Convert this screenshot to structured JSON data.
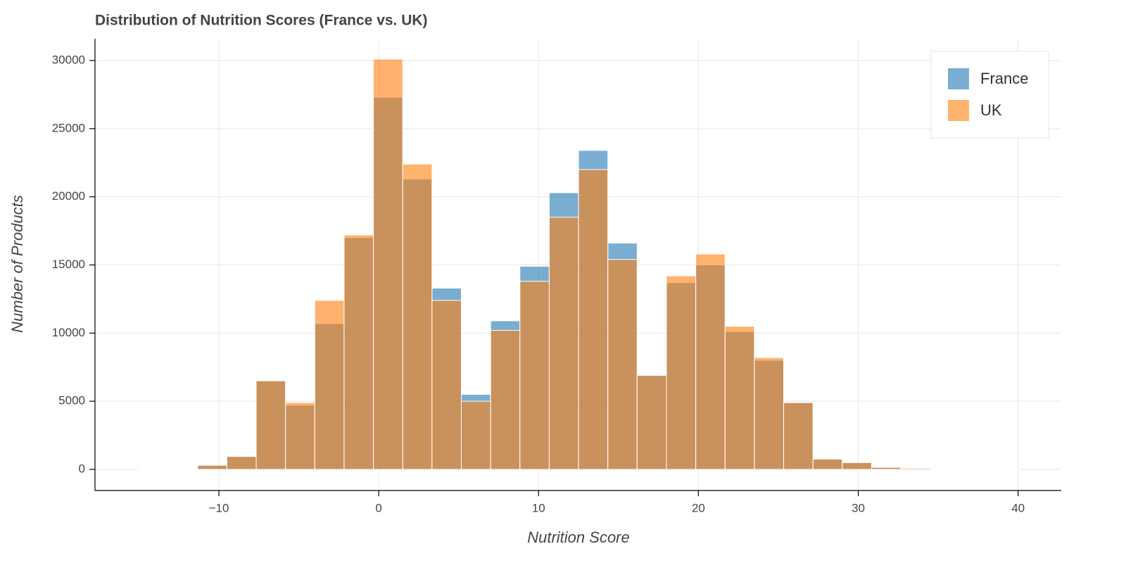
{
  "chart_data": {
    "type": "histogram",
    "title": "Distribution of Nutrition Scores (France vs. UK)",
    "x_label": "Nutrition Score",
    "y_label": "Number of Products",
    "bins": [
      -15,
      -13.1667,
      -11.3333,
      -9.5,
      -7.6667,
      -5.8333,
      -4,
      -2.1667,
      -0.3333,
      1.5,
      3.3333,
      5.1667,
      7,
      8.8333,
      10.6667,
      12.5,
      14.3333,
      16.1667,
      18,
      19.8333,
      21.6667,
      23.5,
      25.3333,
      27.1667,
      29,
      30.8333,
      32.6667,
      34.5,
      36.3333,
      38.1667,
      40
    ],
    "series": [
      {
        "name": "France",
        "color": "#1f77b4",
        "alpha": 0.6,
        "values": [
          10,
          50,
          300,
          950,
          6500,
          4700,
          10700,
          17000,
          27300,
          21300,
          13300,
          5500,
          10900,
          14900,
          20300,
          23400,
          16600,
          6900,
          13700,
          15000,
          10100,
          8000,
          4900,
          750,
          500,
          150,
          80,
          30,
          10,
          5
        ]
      },
      {
        "name": "UK",
        "color": "#ff7f0e",
        "alpha": 0.6,
        "values": [
          10,
          50,
          300,
          950,
          6500,
          4900,
          12400,
          17200,
          30100,
          22400,
          12400,
          5000,
          10200,
          13800,
          18500,
          22000,
          15400,
          6900,
          14200,
          15800,
          10500,
          8200,
          4900,
          750,
          500,
          150,
          80,
          30,
          10,
          5
        ]
      }
    ],
    "xlim": [
      -17.75,
      42.7
    ],
    "ylim": [
      -1550,
      31600
    ],
    "xticks": [
      {
        "value": -10,
        "label": "−10"
      },
      0,
      10,
      20,
      30,
      40
    ],
    "yticks": [
      0,
      5000,
      10000,
      15000,
      20000,
      25000,
      30000
    ],
    "grid": true,
    "legend": "top-right"
  }
}
